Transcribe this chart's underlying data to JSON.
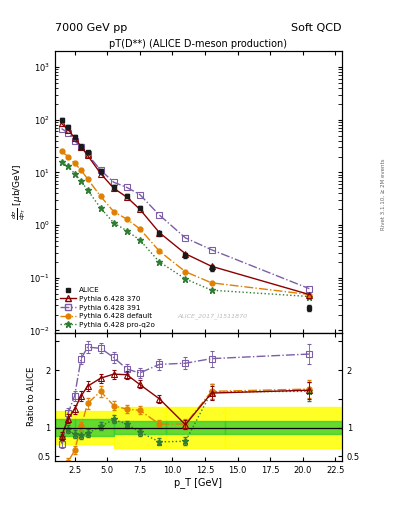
{
  "title_main": "pT(D**) (ALICE D-meson production)",
  "header_left": "7000 GeV pp",
  "header_right": "Soft QCD",
  "ylabel_main": "dσ/dp_T [μb/GeV]",
  "ylabel_ratio": "Ratio to ALICE",
  "xlabel": "p_T [GeV]",
  "watermark": "ALICE_2017_I1511870",
  "rivet_label": "Rivet 3.1.10, ≥ 2M events",
  "alice_x": [
    1.5,
    2.0,
    2.5,
    3.0,
    3.5,
    4.5,
    5.5,
    6.5,
    7.5,
    9.0,
    11.0,
    13.0,
    20.5
  ],
  "alice_y": [
    100,
    72,
    47,
    31,
    24,
    10.5,
    5.2,
    3.6,
    2.1,
    0.7,
    0.27,
    0.155,
    0.027
  ],
  "alice_yerr": [
    9,
    6,
    4,
    3,
    2,
    1.0,
    0.5,
    0.35,
    0.2,
    0.07,
    0.03,
    0.018,
    0.004
  ],
  "py370_x": [
    1.5,
    2.0,
    2.5,
    3.0,
    3.5,
    4.5,
    5.5,
    6.5,
    7.5,
    9.0,
    11.0,
    13.0,
    20.5
  ],
  "py370_y": [
    85,
    65,
    45,
    31,
    21,
    9.5,
    5.0,
    3.4,
    2.0,
    0.72,
    0.285,
    0.165,
    0.048
  ],
  "py391_x": [
    1.5,
    2.0,
    2.5,
    3.0,
    3.5,
    4.5,
    5.5,
    6.5,
    7.5,
    9.0,
    11.0,
    13.0,
    20.5
  ],
  "py391_y": [
    68,
    56,
    40,
    30,
    22,
    11.0,
    6.5,
    5.2,
    3.8,
    1.55,
    0.57,
    0.34,
    0.062
  ],
  "pydef_x": [
    1.5,
    2.0,
    2.5,
    3.0,
    3.5,
    4.5,
    5.5,
    6.5,
    7.5,
    9.0,
    11.0,
    13.0,
    20.5
  ],
  "pydef_y": [
    25,
    20,
    15,
    11,
    7.5,
    3.5,
    1.8,
    1.3,
    0.85,
    0.32,
    0.13,
    0.08,
    0.048
  ],
  "pyq2o_x": [
    1.5,
    2.0,
    2.5,
    3.0,
    3.5,
    4.5,
    5.5,
    6.5,
    7.5,
    9.0,
    11.0,
    13.0,
    20.5
  ],
  "pyq2o_y": [
    16,
    13,
    9.5,
    6.8,
    4.6,
    2.1,
    1.1,
    0.78,
    0.52,
    0.2,
    0.095,
    0.058,
    0.044
  ],
  "color_alice": "#1a1a1a",
  "color_py370": "#8B0000",
  "color_py391": "#7B5EA7",
  "color_pydef": "#E08000",
  "color_pyq2o": "#2E7D32",
  "ratio_py370_x": [
    1.5,
    2.0,
    2.5,
    3.0,
    3.5,
    4.5,
    5.5,
    6.5,
    7.5,
    9.0,
    11.0,
    13.0,
    20.5
  ],
  "ratio_py370_y": [
    0.85,
    1.15,
    1.32,
    1.55,
    1.72,
    1.86,
    1.93,
    1.92,
    1.75,
    1.5,
    1.05,
    1.6,
    1.65
  ],
  "ratio_py370_yerr": [
    0.07,
    0.08,
    0.08,
    0.09,
    0.09,
    0.08,
    0.08,
    0.07,
    0.07,
    0.07,
    0.08,
    0.12,
    0.15
  ],
  "ratio_py391_x": [
    1.5,
    2.0,
    2.5,
    3.0,
    3.5,
    4.5,
    5.5,
    6.5,
    7.5,
    9.0,
    11.0,
    13.0,
    20.5
  ],
  "ratio_py391_y": [
    0.72,
    1.25,
    1.55,
    2.2,
    2.4,
    2.38,
    2.22,
    2.02,
    1.95,
    2.1,
    2.12,
    2.2,
    2.28
  ],
  "ratio_py391_yerr": [
    0.07,
    0.09,
    0.09,
    0.1,
    0.1,
    0.09,
    0.09,
    0.08,
    0.08,
    0.09,
    0.1,
    0.14,
    0.18
  ],
  "ratio_pydef_x": [
    1.5,
    2.0,
    2.5,
    3.0,
    3.5,
    4.5,
    5.5,
    6.5,
    7.5,
    9.0,
    11.0,
    13.0,
    20.5
  ],
  "ratio_pydef_y": [
    0.25,
    0.4,
    0.6,
    1.02,
    1.42,
    1.63,
    1.38,
    1.32,
    1.3,
    1.06,
    1.06,
    1.63,
    1.67
  ],
  "ratio_pydef_yerr": [
    0.06,
    0.07,
    0.07,
    0.08,
    0.09,
    0.09,
    0.08,
    0.07,
    0.07,
    0.07,
    0.08,
    0.13,
    0.16
  ],
  "ratio_pyq2o_x": [
    1.5,
    2.0,
    2.5,
    3.0,
    3.5,
    4.5,
    5.5,
    6.5,
    7.5,
    9.0,
    11.0,
    13.0,
    20.5
  ],
  "ratio_pyq2o_y": [
    0.83,
    0.97,
    0.88,
    0.87,
    0.9,
    1.02,
    1.14,
    1.06,
    0.92,
    0.75,
    0.76,
    1.62,
    1.63
  ],
  "ratio_pyq2o_yerr": [
    0.06,
    0.07,
    0.07,
    0.07,
    0.07,
    0.07,
    0.07,
    0.06,
    0.06,
    0.06,
    0.07,
    0.13,
    0.16
  ],
  "band_yellow_edges": [
    1.0,
    2.5,
    5.5,
    9.5,
    14.0,
    23.0
  ],
  "band_yellow_lo": [
    0.72,
    0.72,
    0.65,
    0.65,
    0.65
  ],
  "band_yellow_hi": [
    1.28,
    1.28,
    1.35,
    1.35,
    1.35
  ],
  "band_green_edges": [
    1.0,
    2.5,
    5.5,
    9.5,
    14.0,
    23.0
  ],
  "band_green_lo": [
    0.85,
    0.85,
    0.88,
    0.88,
    0.88
  ],
  "band_green_hi": [
    1.15,
    1.15,
    1.12,
    1.12,
    1.12
  ],
  "xlim": [
    1.0,
    23.0
  ],
  "ylim_main": [
    0.009,
    2000.0
  ],
  "ylim_ratio": [
    0.42,
    2.65
  ]
}
